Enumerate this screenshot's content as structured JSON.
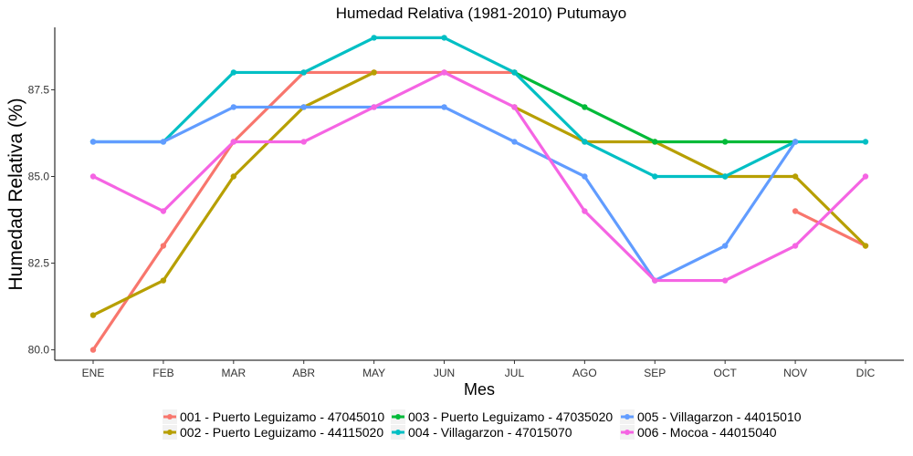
{
  "chart_data": {
    "type": "line",
    "title": "Humedad Relativa (1981-2010)  Putumayo",
    "xlabel": "Mes",
    "ylabel": "Humedad Relativa   (%)",
    "categories": [
      "ENE",
      "FEB",
      "MAR",
      "ABR",
      "MAY",
      "JUN",
      "JUL",
      "AGO",
      "SEP",
      "OCT",
      "NOV",
      "DIC"
    ],
    "yticks": [
      80.0,
      82.5,
      85.0,
      87.5
    ],
    "ytick_labels": [
      "80.0",
      "82.5",
      "85.0",
      "87.5"
    ],
    "ylim": [
      79.7,
      89.3
    ],
    "grid": false,
    "legend_position": "bottom",
    "series": [
      {
        "name": "001 - Puerto Leguizamo - 47045010",
        "color": "#F8766D",
        "values": [
          80,
          83,
          86,
          88,
          88,
          88,
          88,
          null,
          null,
          null,
          84,
          83
        ]
      },
      {
        "name": "002 - Puerto Leguizamo - 44115020",
        "color": "#B79F00",
        "values": [
          81,
          82,
          85,
          87,
          88,
          null,
          87,
          86,
          86,
          85,
          85,
          83
        ]
      },
      {
        "name": "003 - Puerto Leguizamo - 47035020",
        "color": "#00BA38",
        "values": [
          null,
          null,
          null,
          null,
          null,
          null,
          88,
          87,
          86,
          86,
          86,
          null
        ]
      },
      {
        "name": "004 - Villagarzon - 47015070",
        "color": "#00BFC4",
        "values": [
          86,
          86,
          88,
          88,
          89,
          89,
          88,
          86,
          85,
          85,
          86,
          86
        ]
      },
      {
        "name": "005 - Villagarzon - 44015010",
        "color": "#619CFF",
        "values": [
          86,
          86,
          87,
          87,
          87,
          87,
          86,
          85,
          82,
          83,
          86,
          null
        ]
      },
      {
        "name": "006 - Mocoa - 44015040",
        "color": "#F564E3",
        "values": [
          85,
          84,
          86,
          86,
          87,
          88,
          87,
          84,
          82,
          82,
          83,
          85
        ]
      }
    ]
  }
}
